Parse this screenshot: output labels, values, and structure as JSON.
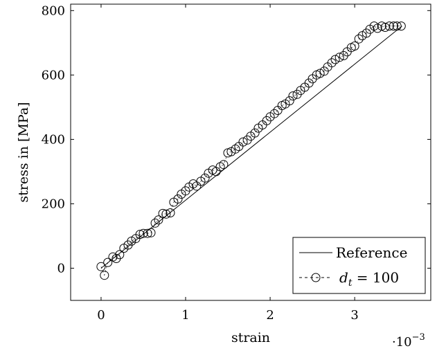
{
  "chart_data": {
    "type": "scatter",
    "xlabel": "strain",
    "ylabel": "stress in [MPa]",
    "x_multiplier_label": "·10",
    "x_multiplier_exponent": "−3",
    "xlim": [
      -0.36,
      3.9
    ],
    "ylim": [
      -100,
      820
    ],
    "x_ticks": [
      0,
      1,
      2,
      3
    ],
    "y_ticks": [
      0,
      200,
      400,
      600,
      800
    ],
    "grid": false,
    "legend_position": "bottom-right",
    "series": [
      {
        "name": "Reference",
        "style": "solid-line",
        "x": [
          0,
          3.56
        ],
        "y": [
          0,
          752
        ]
      },
      {
        "name": "d_t = 100",
        "legend_label_base": "d",
        "legend_label_sub": "t",
        "legend_label_rest": " = 100",
        "style": "dashed-circle-markers",
        "x": [
          0.0,
          0.04,
          0.08,
          0.14,
          0.18,
          0.22,
          0.27,
          0.32,
          0.36,
          0.41,
          0.46,
          0.5,
          0.55,
          0.59,
          0.64,
          0.68,
          0.73,
          0.77,
          0.82,
          0.86,
          0.91,
          0.95,
          1.0,
          1.04,
          1.09,
          1.13,
          1.18,
          1.23,
          1.27,
          1.32,
          1.36,
          1.41,
          1.45,
          1.5,
          1.54,
          1.59,
          1.63,
          1.68,
          1.73,
          1.77,
          1.82,
          1.86,
          1.91,
          1.96,
          2.0,
          2.05,
          2.09,
          2.14,
          2.18,
          2.23,
          2.27,
          2.32,
          2.36,
          2.41,
          2.46,
          2.5,
          2.55,
          2.59,
          2.64,
          2.68,
          2.73,
          2.77,
          2.82,
          2.87,
          2.91,
          2.96,
          3.0,
          3.05,
          3.09,
          3.14,
          3.18,
          3.23,
          3.27,
          3.32,
          3.36,
          3.41,
          3.46,
          3.5,
          3.55
        ],
        "y": [
          5,
          -22,
          18,
          35,
          30,
          42,
          62,
          72,
          84,
          92,
          105,
          108,
          108,
          110,
          140,
          150,
          170,
          168,
          172,
          205,
          215,
          230,
          240,
          252,
          262,
          255,
          270,
          280,
          295,
          305,
          300,
          315,
          322,
          358,
          362,
          370,
          378,
          392,
          398,
          410,
          420,
          435,
          445,
          458,
          470,
          480,
          490,
          505,
          510,
          520,
          535,
          540,
          552,
          562,
          575,
          588,
          600,
          605,
          612,
          625,
          638,
          648,
          655,
          660,
          672,
          685,
          690,
          712,
          722,
          730,
          742,
          752,
          745,
          752,
          748,
          752,
          752,
          752,
          752
        ]
      }
    ]
  }
}
